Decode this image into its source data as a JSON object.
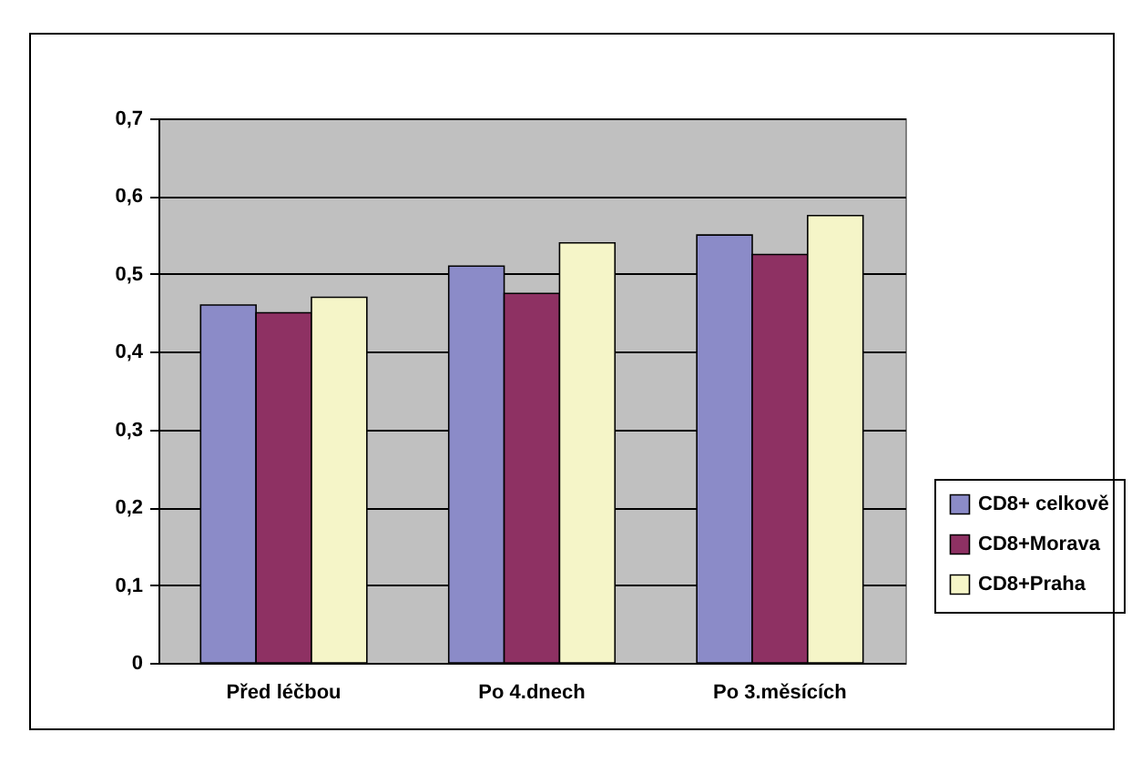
{
  "chart_data": {
    "type": "bar",
    "categories": [
      "Před léčbou",
      "Po 4.dnech",
      "Po 3.měsících"
    ],
    "series": [
      {
        "name": "CD8+ celkově",
        "color": "#8b8bc8",
        "values": [
          0.46,
          0.51,
          0.55
        ]
      },
      {
        "name": "CD8+Morava",
        "color": "#8e3163",
        "values": [
          0.45,
          0.475,
          0.525
        ]
      },
      {
        "name": "CD8+Praha",
        "color": "#f5f5c8",
        "values": [
          0.47,
          0.54,
          0.575
        ]
      }
    ],
    "ylim": [
      0,
      0.7
    ],
    "yticks": [
      {
        "value": 0,
        "label": "0"
      },
      {
        "value": 0.1,
        "label": "0,1"
      },
      {
        "value": 0.2,
        "label": "0,2"
      },
      {
        "value": 0.3,
        "label": "0,3"
      },
      {
        "value": 0.4,
        "label": "0,4"
      },
      {
        "value": 0.5,
        "label": "0,5"
      },
      {
        "value": 0.6,
        "label": "0,6"
      },
      {
        "value": 0.7,
        "label": "0,7"
      }
    ],
    "grid": "y",
    "legend": "right"
  }
}
